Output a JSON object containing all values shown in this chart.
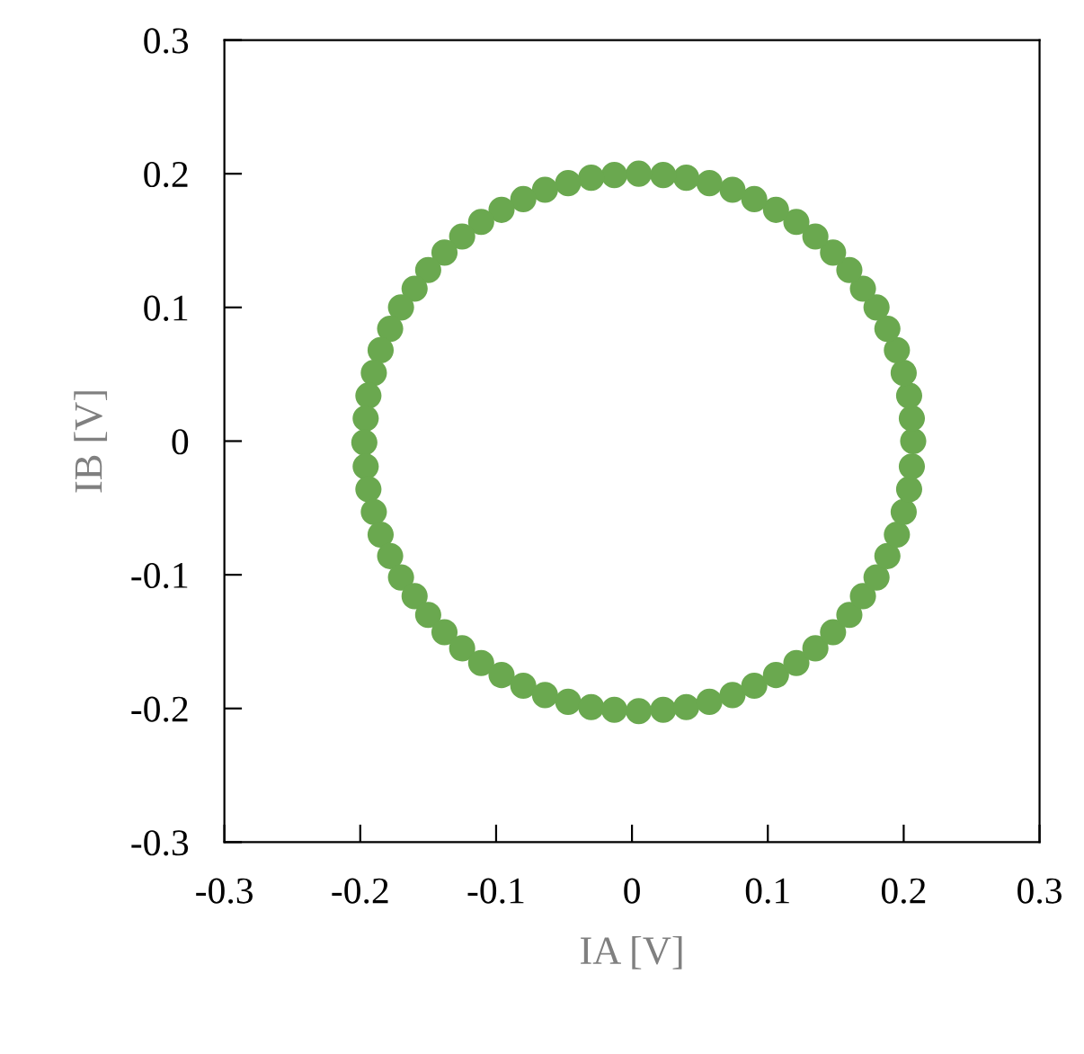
{
  "chart_data": {
    "type": "scatter",
    "xlabel": "IA [V]",
    "ylabel": "IB [V]",
    "xlim": [
      -0.3,
      0.3
    ],
    "ylim": [
      -0.3,
      0.3
    ],
    "xticks": [
      -0.3,
      -0.2,
      -0.1,
      0,
      0.1,
      0.2,
      0.3
    ],
    "yticks": [
      -0.3,
      -0.2,
      -0.1,
      0,
      0.1,
      0.2,
      0.3
    ],
    "grid": false,
    "legend": false,
    "marker": "circle",
    "series": [
      {
        "color": "#6aa84f",
        "x": [
          0.207,
          0.206,
          0.204,
          0.2,
          0.195,
          0.188,
          0.18,
          0.17,
          0.16,
          0.148,
          0.135,
          0.121,
          0.106,
          0.09,
          0.074,
          0.057,
          0.04,
          0.023,
          0.005,
          -0.013,
          -0.03,
          -0.047,
          -0.064,
          -0.08,
          -0.096,
          -0.111,
          -0.125,
          -0.138,
          -0.15,
          -0.16,
          -0.17,
          -0.178,
          -0.185,
          -0.19,
          -0.194,
          -0.196,
          -0.197,
          -0.196,
          -0.194,
          -0.19,
          -0.185,
          -0.178,
          -0.17,
          -0.16,
          -0.15,
          -0.138,
          -0.125,
          -0.111,
          -0.096,
          -0.08,
          -0.064,
          -0.047,
          -0.03,
          -0.013,
          0.005,
          0.023,
          0.04,
          0.057,
          0.074,
          0.09,
          0.106,
          0.121,
          0.135,
          0.148,
          0.16,
          0.17,
          0.18,
          0.188,
          0.195,
          0.2,
          0.204,
          0.206
        ],
        "values": [
          0.0,
          0.017,
          0.034,
          0.051,
          0.068,
          0.084,
          0.1,
          0.114,
          0.128,
          0.141,
          0.153,
          0.164,
          0.173,
          0.181,
          0.188,
          0.193,
          0.197,
          0.199,
          0.2,
          0.199,
          0.197,
          0.193,
          0.188,
          0.181,
          0.173,
          0.164,
          0.153,
          0.141,
          0.128,
          0.114,
          0.1,
          0.084,
          0.068,
          0.051,
          0.034,
          0.017,
          -0.001,
          -0.019,
          -0.036,
          -0.053,
          -0.07,
          -0.086,
          -0.102,
          -0.116,
          -0.13,
          -0.143,
          -0.155,
          -0.166,
          -0.175,
          -0.183,
          -0.19,
          -0.195,
          -0.199,
          -0.201,
          -0.202,
          -0.201,
          -0.199,
          -0.195,
          -0.19,
          -0.183,
          -0.175,
          -0.166,
          -0.155,
          -0.143,
          -0.13,
          -0.116,
          -0.102,
          -0.086,
          -0.07,
          -0.053,
          -0.036,
          -0.019
        ]
      }
    ]
  }
}
